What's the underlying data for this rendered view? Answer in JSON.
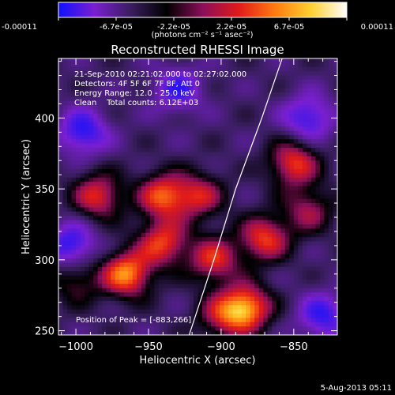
{
  "colorbar": {
    "tick_labels": [
      "-0.00011",
      "-6.7e-05",
      "-2.2e-05",
      "2.2e-05",
      "6.7e-05",
      "0.00011"
    ],
    "units_label": "(photons cm⁻² s⁻¹ asec⁻²)",
    "colors": [
      "#1010ff",
      "#7a1fd0",
      "#3a1e60",
      "#000000",
      "#8a0f5a",
      "#e01a1a",
      "#ff7a10",
      "#ffd030",
      "#ffffff"
    ]
  },
  "chart_data": {
    "type": "heatmap",
    "title": "Reconstructed RHESSI Image",
    "xlabel": "Heliocentric X (arcsec)",
    "ylabel": "Heliocentric Y (arcsec)",
    "xlim": [
      -1012,
      -820
    ],
    "ylim": [
      247,
      442
    ],
    "x_ticks": [
      -1000,
      -950,
      -900,
      -850
    ],
    "y_ticks": [
      250,
      300,
      350,
      400
    ],
    "x_tick_labels": [
      "−1000",
      "−950",
      "−900",
      "−850"
    ],
    "y_tick_labels": [
      "250",
      "300",
      "350",
      "400"
    ],
    "colorbar_range": [
      -0.00011,
      0.00011
    ],
    "grid": false,
    "info_lines": [
      "21-Sep-2010 02:21:02.000 to 02:27:02.000",
      "Detectors: 4F 5F 6F 7F 8F, Att 0",
      "Energy Range: 12.0 - 25.0 keV",
      "Clean    Total counts: 6.12E+03"
    ],
    "peak_label": "Position of Peak = [-883,266]",
    "peak_position": [
      -883,
      266
    ],
    "sources": [
      {
        "x": -883,
        "y": 266,
        "amplitude": 1.0
      },
      {
        "x": -965,
        "y": 290,
        "amplitude": 0.95
      },
      {
        "x": -940,
        "y": 312,
        "amplitude": 0.75
      },
      {
        "x": -985,
        "y": 345,
        "amplitude": 0.7
      },
      {
        "x": -940,
        "y": 345,
        "amplitude": 0.8
      },
      {
        "x": -905,
        "y": 300,
        "amplitude": 0.7
      },
      {
        "x": -915,
        "y": 345,
        "amplitude": 0.6
      },
      {
        "x": -870,
        "y": 315,
        "amplitude": 0.75
      },
      {
        "x": -850,
        "y": 368,
        "amplitude": 0.75
      },
      {
        "x": -840,
        "y": 335,
        "amplitude": 0.5
      },
      {
        "x": -1000,
        "y": 285,
        "amplitude": 0.4
      },
      {
        "x": -900,
        "y": 260,
        "amplitude": 0.5
      }
    ],
    "negative_regions": [
      {
        "x": -995,
        "y": 390,
        "amplitude": -0.6
      },
      {
        "x": -930,
        "y": 420,
        "amplitude": -0.5
      },
      {
        "x": -840,
        "y": 400,
        "amplitude": -0.55
      },
      {
        "x": -1003,
        "y": 310,
        "amplitude": -0.6
      },
      {
        "x": -830,
        "y": 260,
        "amplitude": -0.55
      }
    ],
    "limb_curve": [
      [
        -922,
        247
      ],
      [
        -905,
        300
      ],
      [
        -890,
        350
      ],
      [
        -872,
        400
      ],
      [
        -858,
        442
      ]
    ]
  },
  "footer": {
    "date": "5-Aug-2013 05:11"
  }
}
